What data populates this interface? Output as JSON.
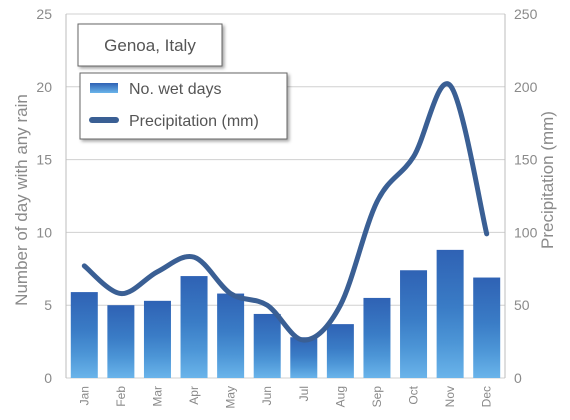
{
  "chart_data": {
    "type": "bar",
    "title": "Genoa, Italy",
    "categories": [
      "Jan",
      "Feb",
      "Mar",
      "Apr",
      "May",
      "Jun",
      "Jul",
      "Aug",
      "Sep",
      "Oct",
      "Nov",
      "Dec"
    ],
    "series": [
      {
        "name": "No. wet days",
        "type": "bar",
        "axis": "left",
        "values": [
          5.9,
          5.0,
          5.3,
          7.0,
          5.8,
          4.4,
          2.8,
          3.7,
          5.5,
          7.4,
          8.8,
          6.9
        ]
      },
      {
        "name": "Precipitation (mm)",
        "type": "line",
        "axis": "right",
        "values": [
          77,
          58,
          73,
          83,
          58,
          50,
          26,
          50,
          121,
          152,
          201,
          99
        ]
      }
    ],
    "ylabel": "Number of day with any rain",
    "y2label": "Precipitation  (mm)",
    "ylim": [
      0,
      25
    ],
    "y2lim": [
      0,
      250
    ],
    "yticks": [
      "0",
      "5",
      "10",
      "15",
      "20",
      "25"
    ],
    "y2ticks": [
      "0",
      "50",
      "100",
      "150",
      "200",
      "250"
    ],
    "grid": true,
    "legend_position": "top-left",
    "colors": {
      "bar_top": "#2f62b4",
      "bar_mid": "#3f86cc",
      "bar_bottom": "#62aee6",
      "line": "#3a5f94",
      "grid": "#d0d0d0",
      "text": "#8a8a8a"
    }
  }
}
